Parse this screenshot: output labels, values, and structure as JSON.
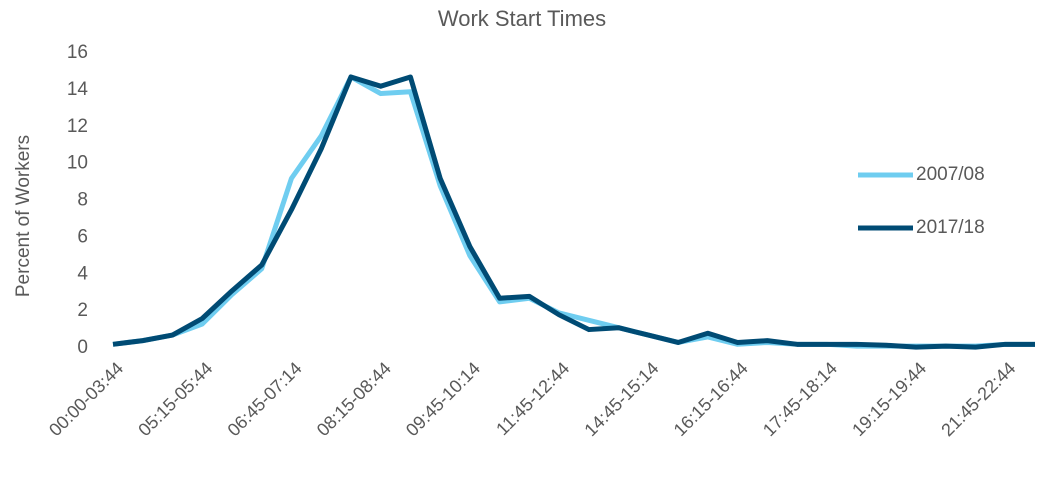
{
  "chart_data": {
    "type": "line",
    "title": "Work Start Times",
    "y_label": "Percent of Workers",
    "categories": [
      "00:00-03:44",
      null,
      null,
      "05:15-05:44",
      null,
      null,
      "06:45-07:14",
      null,
      null,
      "08:15-08:44",
      null,
      null,
      "09:45-10:14",
      null,
      null,
      "11:45-12:44",
      null,
      null,
      "14:45-15:14",
      null,
      null,
      "16:15-16:44",
      null,
      null,
      "17:45-18:14",
      null,
      null,
      "19:15-19:44",
      null,
      null,
      "21:45-22:44",
      null
    ],
    "series": [
      {
        "name": "2007/08",
        "color": "#6fcdf0",
        "values": [
          0.2,
          0.4,
          0.7,
          1.3,
          2.9,
          4.3,
          9.2,
          11.5,
          14.7,
          13.8,
          13.9,
          8.8,
          5.0,
          2.5,
          2.7,
          1.9,
          1.5,
          1.1,
          0.7,
          0.3,
          0.6,
          0.2,
          0.3,
          0.2,
          0.2,
          0.1,
          0.1,
          0.1,
          0.1,
          0.1,
          0.2,
          0.2
        ]
      },
      {
        "name": "2017/18",
        "color": "#004b74",
        "values": [
          0.2,
          0.4,
          0.7,
          1.6,
          3.1,
          4.5,
          7.5,
          10.8,
          14.7,
          14.2,
          14.7,
          9.2,
          5.5,
          2.7,
          2.8,
          1.8,
          1.0,
          1.1,
          0.7,
          0.3,
          0.8,
          0.3,
          0.4,
          0.2,
          0.2,
          0.2,
          0.15,
          0.05,
          0.1,
          0.05,
          0.2,
          0.2
        ]
      }
    ],
    "ylim": [
      0,
      16
    ],
    "yticks": [
      0,
      2,
      4,
      6,
      8,
      10,
      12,
      14,
      16
    ],
    "grid": false
  }
}
